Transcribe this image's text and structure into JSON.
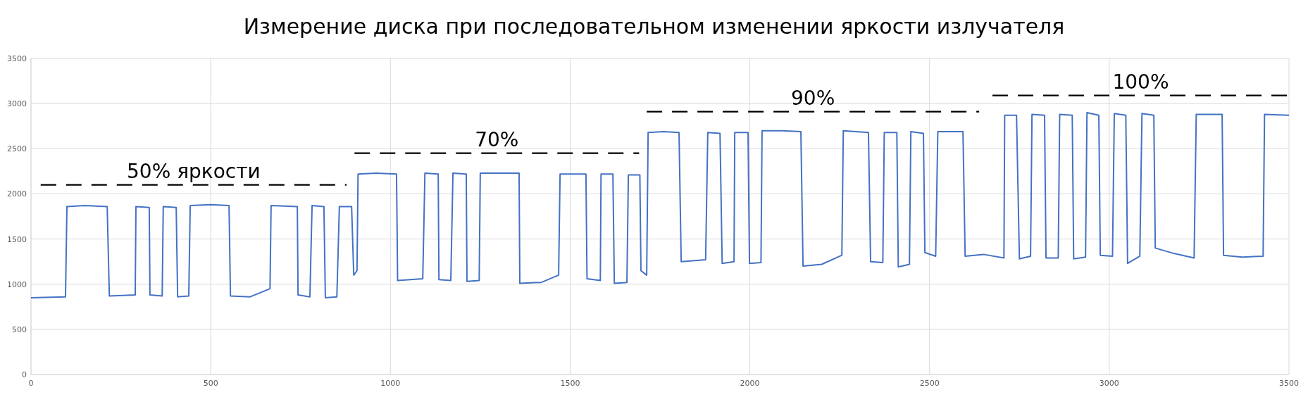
{
  "chart_data": {
    "type": "line",
    "title": "Измерение диска при последовательном изменении яркости излучателя",
    "xlim": [
      0,
      3500
    ],
    "ylim": [
      0,
      3500
    ],
    "xticks": [
      0,
      500,
      1000,
      1500,
      2000,
      2500,
      3000,
      3500
    ],
    "yticks": [
      0,
      500,
      1000,
      1500,
      2000,
      2500,
      3000,
      3500
    ],
    "grid": true,
    "series": [
      {
        "color": "#4472c4",
        "x": [
          0,
          96,
          100,
          150,
          212,
          218,
          290,
          292,
          329,
          331,
          365,
          368,
          404,
          408,
          439,
          443,
          500,
          551,
          555,
          610,
          665,
          668,
          741,
          743,
          776,
          782,
          815,
          819,
          851,
          858,
          892,
          898,
          907,
          910,
          960,
          1017,
          1020,
          1090,
          1096,
          1133,
          1135,
          1168,
          1174,
          1211,
          1213,
          1247,
          1250,
          1300,
          1358,
          1360,
          1420,
          1468,
          1472,
          1544,
          1547,
          1584,
          1586,
          1619,
          1623,
          1658,
          1662,
          1694,
          1697,
          1713,
          1717,
          1760,
          1803,
          1809,
          1877,
          1883,
          1917,
          1923,
          1956,
          1958,
          1995,
          1999,
          2031,
          2034,
          2090,
          2142,
          2148,
          2200,
          2256,
          2260,
          2330,
          2336,
          2370,
          2374,
          2409,
          2413,
          2444,
          2448,
          2483,
          2487,
          2517,
          2523,
          2593,
          2599,
          2650,
          2707,
          2709,
          2742,
          2750,
          2781,
          2785,
          2820,
          2824,
          2858,
          2862,
          2897,
          2901,
          2934,
          2938,
          2971,
          2975,
          3009,
          3014,
          3046,
          3051,
          3085,
          3091,
          3124,
          3128,
          3180,
          3236,
          3242,
          3314,
          3318,
          3370,
          3428,
          3432,
          3500
        ],
        "values": [
          850,
          860,
          1860,
          1870,
          1860,
          870,
          880,
          1860,
          1850,
          880,
          870,
          1860,
          1850,
          860,
          870,
          1870,
          1880,
          1870,
          870,
          860,
          950,
          1870,
          1860,
          880,
          860,
          1870,
          1860,
          850,
          860,
          1860,
          1860,
          1100,
          1150,
          2220,
          2230,
          2220,
          1040,
          1060,
          2230,
          2220,
          1050,
          1040,
          2230,
          2220,
          1030,
          1040,
          2230,
          2230,
          2230,
          1010,
          1020,
          1100,
          2220,
          2220,
          1060,
          1040,
          2220,
          2220,
          1010,
          1020,
          2210,
          2210,
          1150,
          1100,
          2680,
          2690,
          2680,
          1250,
          1270,
          2680,
          2670,
          1230,
          1250,
          2680,
          2680,
          1230,
          1240,
          2700,
          2700,
          2690,
          1200,
          1220,
          1320,
          2700,
          2680,
          1250,
          1240,
          2680,
          2680,
          1190,
          1220,
          2690,
          2670,
          1350,
          1310,
          2690,
          2690,
          1310,
          1330,
          1290,
          2870,
          2870,
          1280,
          1310,
          2880,
          2870,
          1290,
          1290,
          2880,
          2870,
          1280,
          1300,
          2900,
          2870,
          1320,
          1310,
          2890,
          2870,
          1230,
          1310,
          2890,
          2870,
          1400,
          1340,
          1290,
          2880,
          2880,
          1320,
          1300,
          1310,
          2880,
          2870
        ]
      },
      {
        "name": "50% яркости",
        "color": "#000000",
        "line_style": "dashed",
        "x": [
          27,
          878
        ],
        "values": [
          2100,
          2100
        ]
      },
      {
        "name": "70%",
        "color": "#000000",
        "line_style": "dashed",
        "x": [
          900,
          1692
        ],
        "values": [
          2450,
          2450
        ]
      },
      {
        "name": "90%",
        "color": "#000000",
        "line_style": "dashed",
        "x": [
          1713,
          2638
        ],
        "values": [
          2910,
          2910
        ]
      },
      {
        "name": "100%",
        "color": "#000000",
        "line_style": "dashed",
        "x": [
          2675,
          3500
        ],
        "values": [
          3090,
          3090
        ]
      }
    ]
  }
}
